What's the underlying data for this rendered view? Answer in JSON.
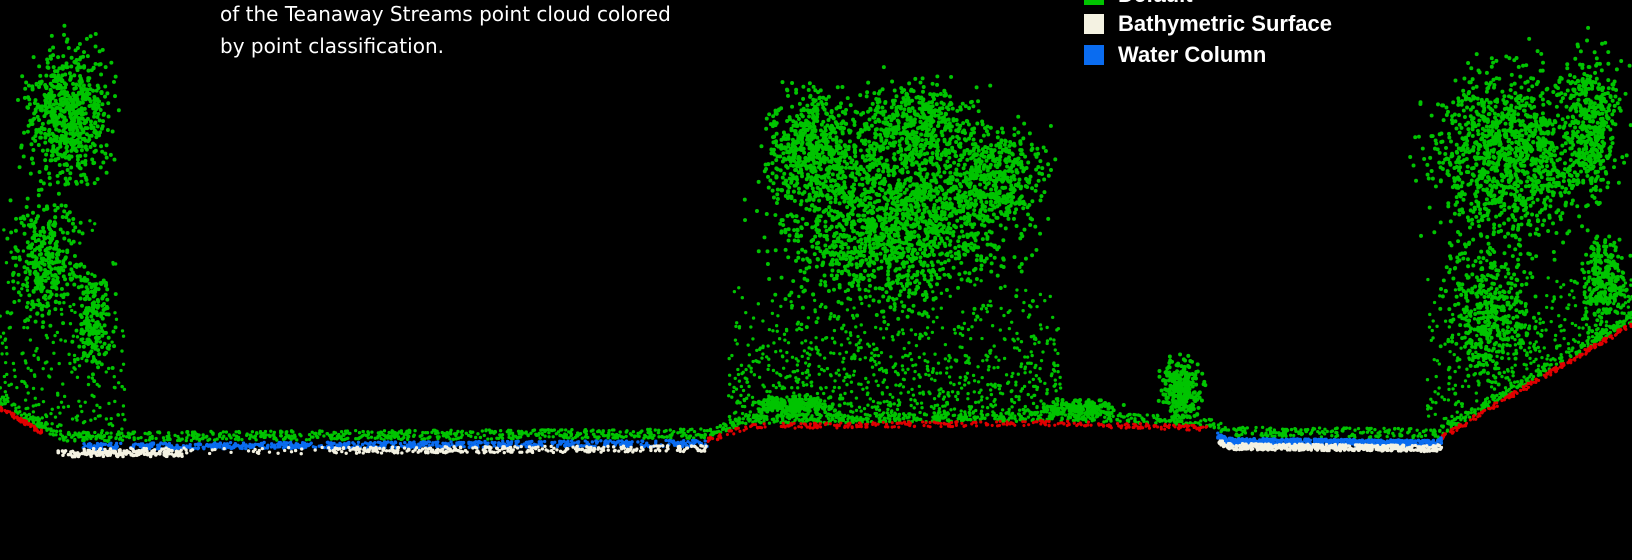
{
  "caption": {
    "lines": [
      "of the Teanaway Streams point cloud colored",
      "by point classification."
    ]
  },
  "legend": [
    {
      "label": "Default",
      "color": "#00c400"
    },
    {
      "label": "Bathymetric Surface",
      "color": "#f4f2e2"
    },
    {
      "label": "Water Column",
      "color": "#0a6cf0"
    }
  ]
}
